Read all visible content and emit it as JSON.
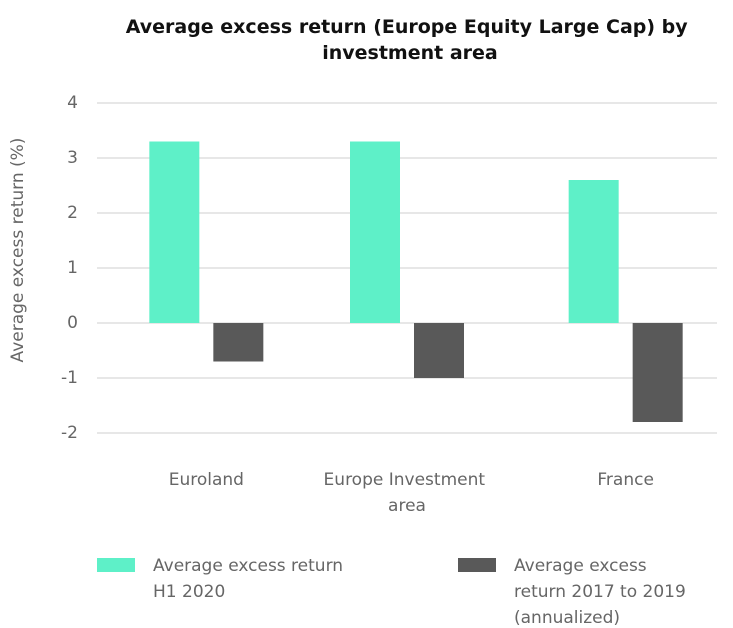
{
  "chart_data": {
    "type": "bar",
    "title": "Average excess return (Europe Equity Large Cap) by investment area",
    "y_label": "Average excess return (%)",
    "categories": [
      "Euroland",
      "Europe Investment area",
      "France"
    ],
    "series": [
      {
        "name": "Average excess return H1 2020",
        "color": "#5ef0c8",
        "values": [
          3.3,
          3.3,
          2.6
        ]
      },
      {
        "name": "Average excess return 2017 to 2019 (annualized)",
        "color": "#595959",
        "values": [
          -0.7,
          -1.0,
          -1.8
        ]
      }
    ],
    "ylim": [
      -2,
      4
    ],
    "yticks": [
      -2,
      -1,
      0,
      1,
      2,
      3,
      4
    ],
    "grid": true,
    "legend": "bottom"
  }
}
